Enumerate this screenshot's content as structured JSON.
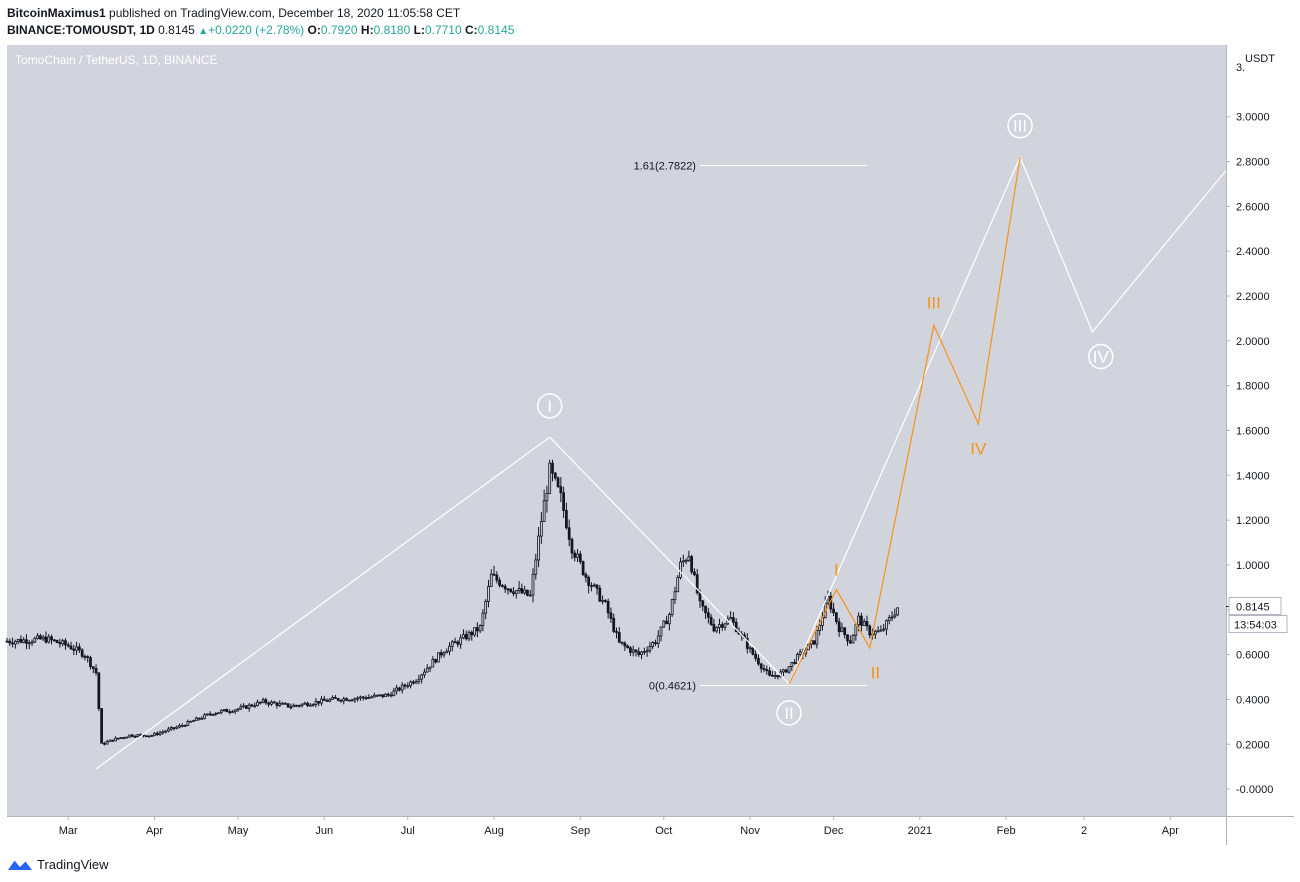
{
  "header": {
    "author": "BitcoinMaximus1",
    "published": "published on TradingView.com, December 18, 2020 11:05:58 CET",
    "symbol": "BINANCE:TOMOUSDT, 1D",
    "price": "0.8145",
    "change": "+0.0220 (+2.78%)",
    "open_label": "O:",
    "open": "0.7920",
    "high_label": "H:",
    "high": "0.8180",
    "low_label": "L:",
    "low": "0.7710",
    "close_label": "C:",
    "close": "0.8145"
  },
  "chart_data": {
    "type": "candlestick",
    "title": "TomoChain / TetherUS, 1D, BINANCE",
    "currency": "USDT",
    "ylim": [
      -0.12,
      3.32
    ],
    "y_ticks": [
      "-0.0000",
      "0.2000",
      "0.4000",
      "0.6000",
      "0.8000",
      "1.0000",
      "1.2000",
      "1.4000",
      "1.6000",
      "1.8000",
      "2.0000",
      "2.2000",
      "2.4000",
      "2.6000",
      "2.8000",
      "3.0000"
    ],
    "y_tick_values": [
      0,
      0.2,
      0.4,
      0.6,
      0.8,
      1.0,
      1.2,
      1.4,
      1.6,
      1.8,
      2.0,
      2.2,
      2.4,
      2.6,
      2.8,
      3.0
    ],
    "top_tick_partial": "3.",
    "x_ticks": [
      {
        "label": "Mar",
        "day": 0
      },
      {
        "label": "Apr",
        "day": 31
      },
      {
        "label": "May",
        "day": 61
      },
      {
        "label": "Jun",
        "day": 92
      },
      {
        "label": "Jul",
        "day": 122
      },
      {
        "label": "Aug",
        "day": 153
      },
      {
        "label": "Sep",
        "day": 184
      },
      {
        "label": "Oct",
        "day": 214
      },
      {
        "label": "Nov",
        "day": 245
      },
      {
        "label": "Dec",
        "day": 275
      },
      {
        "label": "2021",
        "day": 306
      },
      {
        "label": "Feb",
        "day": 337
      },
      {
        "label": "2",
        "day": 365
      },
      {
        "label": "Apr",
        "day": 396
      }
    ],
    "x_range_days": [
      -22,
      416
    ],
    "price_anchors": [
      [
        -22,
        0.66
      ],
      [
        -8,
        0.67
      ],
      [
        0,
        0.64
      ],
      [
        6,
        0.6
      ],
      [
        10,
        0.52
      ],
      [
        12,
        0.2
      ],
      [
        16,
        0.22
      ],
      [
        22,
        0.24
      ],
      [
        30,
        0.24
      ],
      [
        40,
        0.28
      ],
      [
        52,
        0.34
      ],
      [
        62,
        0.36
      ],
      [
        70,
        0.39
      ],
      [
        80,
        0.37
      ],
      [
        95,
        0.4
      ],
      [
        108,
        0.41
      ],
      [
        115,
        0.42
      ],
      [
        125,
        0.49
      ],
      [
        135,
        0.62
      ],
      [
        148,
        0.72
      ],
      [
        152,
        0.95
      ],
      [
        158,
        0.9
      ],
      [
        166,
        0.86
      ],
      [
        170,
        1.2
      ],
      [
        173,
        1.42
      ],
      [
        177,
        1.3
      ],
      [
        181,
        1.08
      ],
      [
        186,
        0.95
      ],
      [
        193,
        0.82
      ],
      [
        198,
        0.65
      ],
      [
        205,
        0.6
      ],
      [
        211,
        0.66
      ],
      [
        216,
        0.78
      ],
      [
        220,
        1.0
      ],
      [
        223,
        1.05
      ],
      [
        227,
        0.82
      ],
      [
        232,
        0.72
      ],
      [
        238,
        0.76
      ],
      [
        245,
        0.62
      ],
      [
        252,
        0.5
      ],
      [
        257,
        0.52
      ],
      [
        263,
        0.6
      ],
      [
        268,
        0.66
      ],
      [
        273,
        0.85
      ],
      [
        277,
        0.72
      ],
      [
        281,
        0.66
      ],
      [
        284,
        0.76
      ],
      [
        288,
        0.7
      ],
      [
        292,
        0.7
      ],
      [
        298,
        0.81
      ]
    ],
    "last_price": "0.8145",
    "countdown": "13:54:03",
    "fib_levels": [
      {
        "label": "1.61(2.7822)",
        "value": 2.7822,
        "from_day": 227,
        "to_day": 287
      },
      {
        "label": "0(0.4621)",
        "value": 0.4621,
        "from_day": 227,
        "to_day": 287
      }
    ],
    "white_wave_path": [
      [
        10,
        0.09
      ],
      [
        173,
        1.57
      ],
      [
        259,
        0.47
      ],
      [
        342,
        2.82
      ],
      [
        368,
        2.04
      ],
      [
        416,
        2.76
      ]
    ],
    "white_wave_labels": [
      {
        "label": "I",
        "day": 173,
        "value": 1.71
      },
      {
        "label": "II",
        "day": 259,
        "value": 0.34
      },
      {
        "label": "III",
        "day": 342,
        "value": 2.96
      },
      {
        "label": "IV",
        "day": 371,
        "value": 1.93
      }
    ],
    "orange_wave_path": [
      [
        259,
        0.47
      ],
      [
        276,
        0.89
      ],
      [
        288,
        0.63
      ],
      [
        311,
        2.07
      ],
      [
        327,
        1.63
      ],
      [
        342,
        2.82
      ]
    ],
    "orange_wave_labels": [
      {
        "label": "I",
        "day": 276,
        "value": 0.98
      },
      {
        "label": "II",
        "day": 290,
        "value": 0.52
      },
      {
        "label": "III",
        "day": 311,
        "value": 2.17
      },
      {
        "label": "IV",
        "day": 327,
        "value": 1.52
      }
    ],
    "colors": {
      "plot_bg": "#d1d4dc",
      "candle": "#131722",
      "wave_white": "#ffffff",
      "wave_orange": "#f7931a",
      "axis_text": "#131722",
      "label_bg": "#ffffff"
    }
  },
  "footer": {
    "brand": "TradingView"
  }
}
